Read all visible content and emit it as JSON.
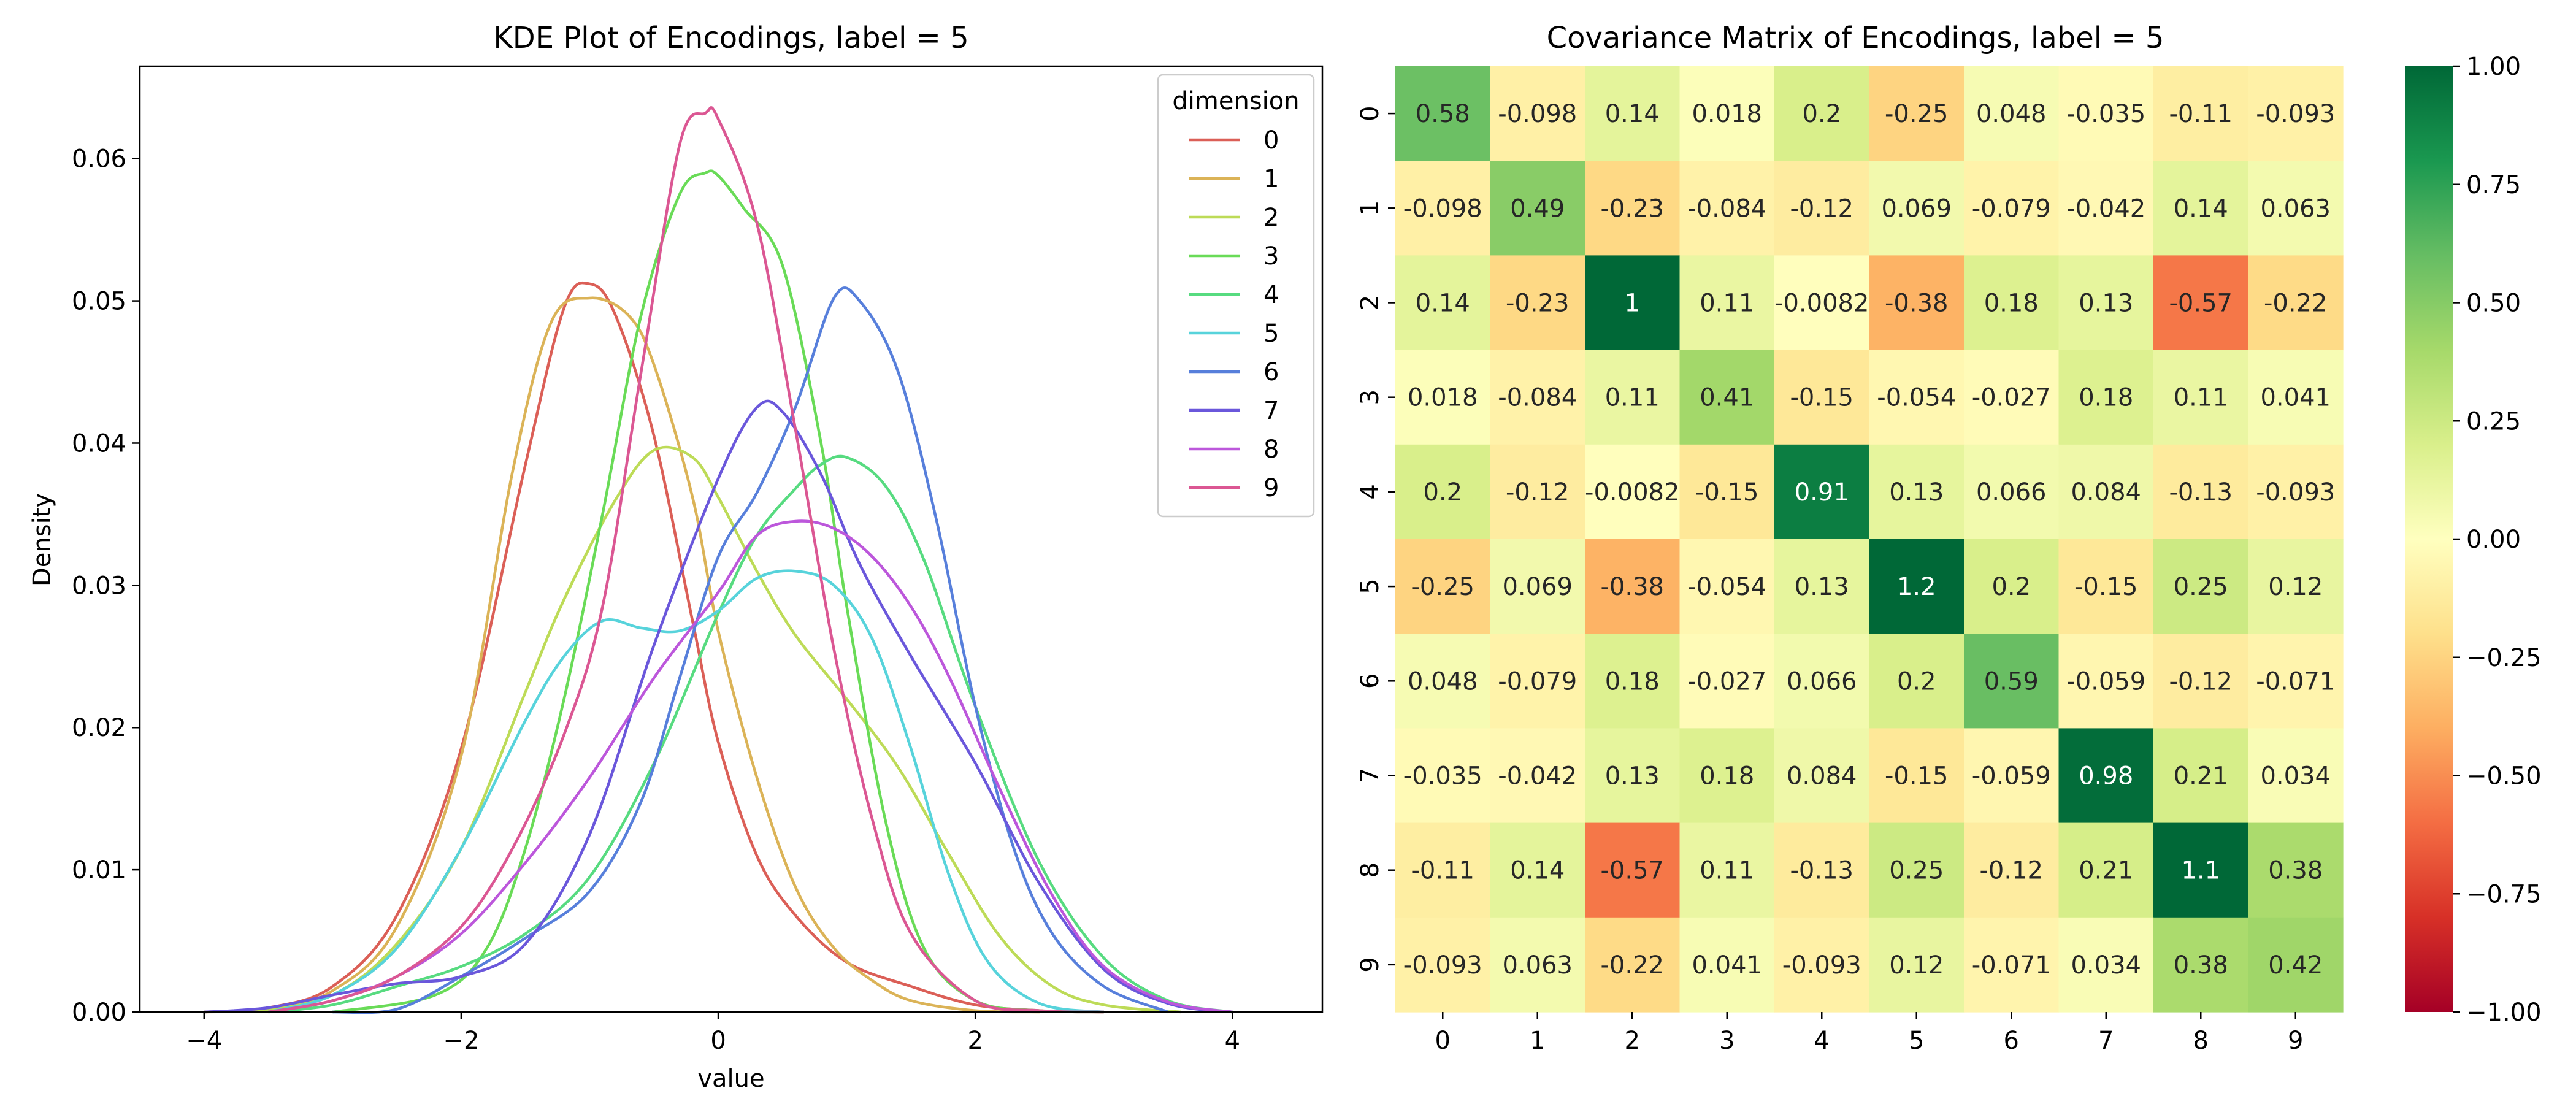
{
  "chart_data": [
    {
      "type": "line",
      "title": "KDE Plot of Encodings, label = 5",
      "xlabel": "value",
      "ylabel": "Density",
      "xlim": [
        -4.5,
        4.7
      ],
      "ylim": [
        0,
        0.0665
      ],
      "xticks": [
        -4,
        -2,
        0,
        2,
        4
      ],
      "yticks": [
        0.0,
        0.01,
        0.02,
        0.03,
        0.04,
        0.05,
        0.06
      ],
      "ytick_labels": [
        "0.00",
        "0.01",
        "0.02",
        "0.03",
        "0.04",
        "0.05",
        "0.06"
      ],
      "grid": false,
      "legend": {
        "title": "dimension",
        "placement": "top-right"
      },
      "series": [
        {
          "name": "0",
          "color": "#db5f57",
          "x": [
            -4.0,
            -3.5,
            -3.0,
            -2.5,
            -2.0,
            -1.5,
            -1.2,
            -1.0,
            -0.8,
            -0.5,
            -0.2,
            0.0,
            0.3,
            0.6,
            1.0,
            1.5,
            2.0,
            2.5,
            3.0
          ],
          "y": [
            0.0,
            0.0003,
            0.0018,
            0.0068,
            0.0185,
            0.0385,
            0.0495,
            0.0512,
            0.049,
            0.0405,
            0.0275,
            0.019,
            0.011,
            0.0068,
            0.0035,
            0.0018,
            0.0005,
            0.0001,
            0.0
          ]
        },
        {
          "name": "1",
          "color": "#dbb357",
          "x": [
            -4.0,
            -3.5,
            -3.0,
            -2.5,
            -2.0,
            -1.6,
            -1.3,
            -1.0,
            -0.7,
            -0.5,
            -0.2,
            0.0,
            0.3,
            0.6,
            0.9,
            1.2,
            1.5,
            2.0,
            2.5
          ],
          "y": [
            0.0,
            0.0002,
            0.0015,
            0.006,
            0.018,
            0.038,
            0.0485,
            0.0502,
            0.049,
            0.0455,
            0.0362,
            0.0268,
            0.0165,
            0.0088,
            0.0045,
            0.0022,
            0.0008,
            0.0001,
            0.0
          ]
        },
        {
          "name": "2",
          "color": "#bddb57",
          "x": [
            -3.6,
            -3.0,
            -2.5,
            -2.0,
            -1.5,
            -1.2,
            -0.8,
            -0.5,
            -0.2,
            0.0,
            0.3,
            0.6,
            1.0,
            1.4,
            1.8,
            2.2,
            2.6,
            3.0,
            3.6
          ],
          "y": [
            0.0,
            0.0012,
            0.0048,
            0.0115,
            0.0225,
            0.029,
            0.036,
            0.0395,
            0.039,
            0.0362,
            0.031,
            0.0265,
            0.022,
            0.0172,
            0.011,
            0.0052,
            0.0018,
            0.0005,
            0.0
          ]
        },
        {
          "name": "3",
          "color": "#69db57",
          "x": [
            -3.0,
            -2.2,
            -1.8,
            -1.5,
            -1.2,
            -0.9,
            -0.6,
            -0.3,
            -0.1,
            0.0,
            0.2,
            0.5,
            0.8,
            1.0,
            1.3,
            1.6,
            2.0,
            2.5,
            3.0
          ],
          "y": [
            0.0,
            0.0012,
            0.0045,
            0.0115,
            0.022,
            0.035,
            0.049,
            0.0575,
            0.059,
            0.0588,
            0.0565,
            0.0525,
            0.04,
            0.0285,
            0.0135,
            0.0045,
            0.0008,
            0.0001,
            0.0
          ]
        },
        {
          "name": "4",
          "color": "#57db80",
          "x": [
            -3.5,
            -3.0,
            -2.5,
            -2.0,
            -1.5,
            -1.0,
            -0.5,
            0.0,
            0.3,
            0.6,
            0.8,
            1.0,
            1.3,
            1.6,
            2.0,
            2.5,
            3.0,
            3.5,
            4.0
          ],
          "y": [
            0.0,
            0.0005,
            0.0018,
            0.0032,
            0.0055,
            0.0095,
            0.0175,
            0.028,
            0.0335,
            0.0368,
            0.0385,
            0.039,
            0.037,
            0.0318,
            0.0215,
            0.0105,
            0.0038,
            0.0008,
            0.0
          ]
        },
        {
          "name": "5",
          "color": "#57d3db",
          "x": [
            -3.5,
            -3.0,
            -2.5,
            -2.0,
            -1.5,
            -1.2,
            -0.9,
            -0.6,
            -0.3,
            0.0,
            0.3,
            0.6,
            0.9,
            1.2,
            1.5,
            1.8,
            2.1,
            2.5,
            3.0
          ],
          "y": [
            0.0,
            0.0012,
            0.0045,
            0.0115,
            0.0205,
            0.025,
            0.0275,
            0.027,
            0.0268,
            0.0282,
            0.0305,
            0.031,
            0.03,
            0.0262,
            0.0185,
            0.0095,
            0.0035,
            0.0006,
            0.0
          ]
        },
        {
          "name": "6",
          "color": "#577fdb",
          "x": [
            -3.0,
            -2.5,
            -2.0,
            -1.5,
            -1.0,
            -0.6,
            -0.3,
            0.0,
            0.3,
            0.6,
            0.9,
            1.1,
            1.4,
            1.7,
            2.0,
            2.3,
            2.6,
            3.0,
            3.5
          ],
          "y": [
            0.0,
            0.0002,
            0.0025,
            0.0052,
            0.0085,
            0.0148,
            0.0235,
            0.032,
            0.0365,
            0.0425,
            0.0502,
            0.05,
            0.045,
            0.0345,
            0.0215,
            0.0115,
            0.0055,
            0.0018,
            0.0
          ]
        },
        {
          "name": "7",
          "color": "#6a57db",
          "x": [
            -4.0,
            -3.5,
            -3.0,
            -2.5,
            -2.0,
            -1.5,
            -1.0,
            -0.5,
            0.0,
            0.3,
            0.5,
            0.8,
            1.1,
            1.5,
            2.0,
            2.5,
            3.0,
            3.5,
            4.0
          ],
          "y": [
            0.0,
            0.0003,
            0.0012,
            0.002,
            0.0025,
            0.0048,
            0.0125,
            0.0258,
            0.0375,
            0.0425,
            0.0422,
            0.0378,
            0.0315,
            0.025,
            0.0175,
            0.009,
            0.003,
            0.0006,
            0.0
          ]
        },
        {
          "name": "8",
          "color": "#bc57db",
          "x": [
            -3.5,
            -3.0,
            -2.5,
            -2.0,
            -1.5,
            -1.0,
            -0.5,
            0.0,
            0.3,
            0.6,
            0.9,
            1.2,
            1.5,
            1.8,
            2.2,
            2.6,
            3.0,
            3.5,
            4.0
          ],
          "y": [
            0.0,
            0.0008,
            0.0025,
            0.0055,
            0.0105,
            0.0165,
            0.0235,
            0.0295,
            0.0335,
            0.0345,
            0.034,
            0.032,
            0.0285,
            0.0235,
            0.0155,
            0.0082,
            0.0032,
            0.0007,
            0.0
          ]
        },
        {
          "name": "9",
          "color": "#db5793",
          "x": [
            -3.5,
            -3.0,
            -2.5,
            -2.0,
            -1.6,
            -1.2,
            -0.9,
            -0.6,
            -0.3,
            -0.1,
            0.0,
            0.3,
            0.6,
            0.9,
            1.2,
            1.5,
            2.0,
            2.5,
            3.0
          ],
          "y": [
            0.0,
            0.0008,
            0.0025,
            0.006,
            0.0115,
            0.0195,
            0.0285,
            0.045,
            0.061,
            0.0632,
            0.0628,
            0.0555,
            0.041,
            0.0255,
            0.0135,
            0.0055,
            0.0008,
            0.0001,
            0.0
          ]
        }
      ]
    },
    {
      "type": "heatmap",
      "title": "Covariance Matrix of Encodings, label = 5",
      "x_categories": [
        "0",
        "1",
        "2",
        "3",
        "4",
        "5",
        "6",
        "7",
        "8",
        "9"
      ],
      "y_categories": [
        "0",
        "1",
        "2",
        "3",
        "4",
        "5",
        "6",
        "7",
        "8",
        "9"
      ],
      "colormap": "RdYlGn",
      "vmin": -1.0,
      "vmax": 1.0,
      "colorbar_ticks": [
        1.0,
        0.75,
        0.5,
        0.25,
        0.0,
        -0.25,
        -0.5,
        -0.75,
        -1.0
      ],
      "colorbar_tick_labels": [
        "1.00",
        "0.75",
        "0.50",
        "0.25",
        "0.00",
        "−0.25",
        "−0.50",
        "−0.75",
        "−1.00"
      ],
      "values": [
        [
          0.58,
          -0.098,
          0.14,
          0.018,
          0.2,
          -0.25,
          0.048,
          -0.035,
          -0.11,
          -0.093
        ],
        [
          -0.098,
          0.49,
          -0.23,
          -0.084,
          -0.12,
          0.069,
          -0.079,
          -0.042,
          0.14,
          0.063
        ],
        [
          0.14,
          -0.23,
          1.0,
          0.11,
          -0.0082,
          -0.38,
          0.18,
          0.13,
          -0.57,
          -0.22
        ],
        [
          0.018,
          -0.084,
          0.11,
          0.41,
          -0.15,
          -0.054,
          -0.027,
          0.18,
          0.11,
          0.041
        ],
        [
          0.2,
          -0.12,
          -0.0082,
          -0.15,
          0.91,
          0.13,
          0.066,
          0.084,
          -0.13,
          -0.093
        ],
        [
          -0.25,
          0.069,
          -0.38,
          -0.054,
          0.13,
          1.2,
          0.2,
          -0.15,
          0.25,
          0.12
        ],
        [
          0.048,
          -0.079,
          0.18,
          -0.027,
          0.066,
          0.2,
          0.59,
          -0.059,
          -0.12,
          -0.071
        ],
        [
          -0.035,
          -0.042,
          0.13,
          0.18,
          0.084,
          -0.15,
          -0.059,
          0.98,
          0.21,
          0.034
        ],
        [
          -0.11,
          0.14,
          -0.57,
          0.11,
          -0.13,
          0.25,
          -0.12,
          0.21,
          1.1,
          0.38
        ],
        [
          -0.093,
          0.063,
          -0.22,
          0.041,
          -0.093,
          0.12,
          -0.071,
          0.034,
          0.38,
          0.42
        ]
      ],
      "annotations": [
        [
          "0.58",
          "-0.098",
          "0.14",
          "0.018",
          "0.2",
          "-0.25",
          "0.048",
          "-0.035",
          "-0.11",
          "-0.093"
        ],
        [
          "-0.098",
          "0.49",
          "-0.23",
          "-0.084",
          "-0.12",
          "0.069",
          "-0.079",
          "-0.042",
          "0.14",
          "0.063"
        ],
        [
          "0.14",
          "-0.23",
          "1",
          "0.11",
          "-0.0082",
          "-0.38",
          "0.18",
          "0.13",
          "-0.57",
          "-0.22"
        ],
        [
          "0.018",
          "-0.084",
          "0.11",
          "0.41",
          "-0.15",
          "-0.054",
          "-0.027",
          "0.18",
          "0.11",
          "0.041"
        ],
        [
          "0.2",
          "-0.12",
          "-0.0082",
          "-0.15",
          "0.91",
          "0.13",
          "0.066",
          "0.084",
          "-0.13",
          "-0.093"
        ],
        [
          "-0.25",
          "0.069",
          "-0.38",
          "-0.054",
          "0.13",
          "1.2",
          "0.2",
          "-0.15",
          "0.25",
          "0.12"
        ],
        [
          "0.048",
          "-0.079",
          "0.18",
          "-0.027",
          "0.066",
          "0.2",
          "0.59",
          "-0.059",
          "-0.12",
          "-0.071"
        ],
        [
          "-0.035",
          "-0.042",
          "0.13",
          "0.18",
          "0.084",
          "-0.15",
          "-0.059",
          "0.98",
          "0.21",
          "0.034"
        ],
        [
          "-0.11",
          "0.14",
          "-0.57",
          "0.11",
          "-0.13",
          "0.25",
          "-0.12",
          "0.21",
          "1.1",
          "0.38"
        ],
        [
          "-0.093",
          "0.063",
          "-0.22",
          "0.041",
          "-0.093",
          "0.12",
          "-0.071",
          "0.034",
          "0.38",
          "0.42"
        ]
      ]
    }
  ]
}
